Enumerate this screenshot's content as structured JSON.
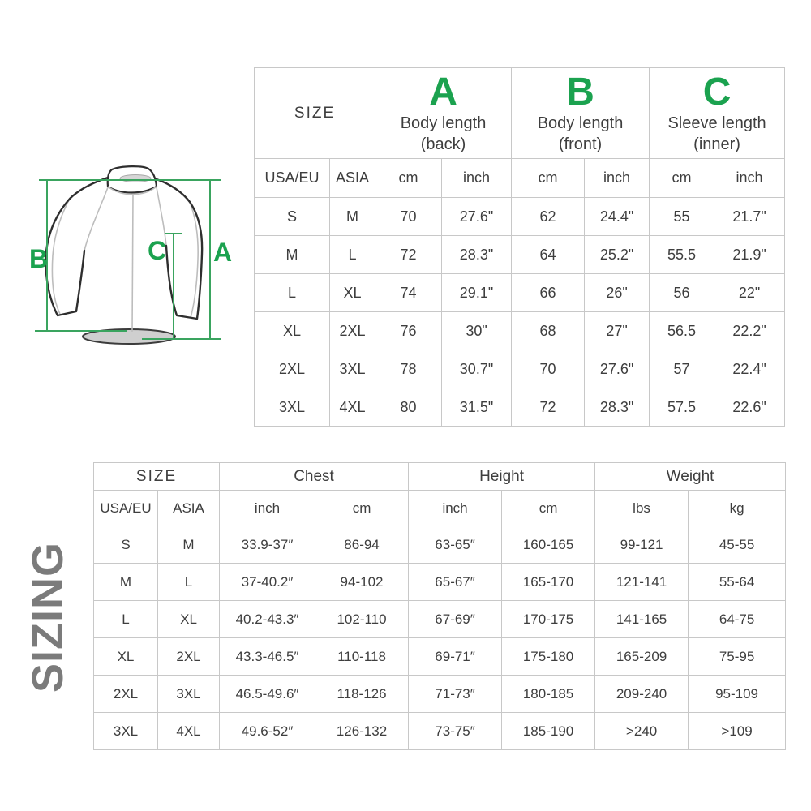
{
  "page": {
    "vertical_title": "SIZING"
  },
  "colors": {
    "accent_green": "#1ba24f",
    "measure_line_green": "#3aa45f",
    "table_border": "#c8c8c8",
    "text": "#3e3e3e",
    "title_gray": "#7b7b7b"
  },
  "diagram": {
    "labels": {
      "a": "A",
      "b": "B",
      "c": "C"
    }
  },
  "chart_data": [
    {
      "type": "table",
      "size_header": "SIZE",
      "measure_groups": [
        {
          "letter": "A",
          "name": "Body length",
          "sub": "(back)"
        },
        {
          "letter": "B",
          "name": "Body length",
          "sub": "(front)"
        },
        {
          "letter": "C",
          "name": "Sleeve length",
          "sub": "(inner)"
        }
      ],
      "subheaders": [
        "USA/EU",
        "ASIA",
        "cm",
        "inch",
        "cm",
        "inch",
        "cm",
        "inch"
      ],
      "rows": [
        [
          "S",
          "M",
          "70",
          "27.6\"",
          "62",
          "24.4\"",
          "55",
          "21.7\""
        ],
        [
          "M",
          "L",
          "72",
          "28.3\"",
          "64",
          "25.2\"",
          "55.5",
          "21.9\""
        ],
        [
          "L",
          "XL",
          "74",
          "29.1\"",
          "66",
          "26\"",
          "56",
          "22\""
        ],
        [
          "XL",
          "2XL",
          "76",
          "30\"",
          "68",
          "27\"",
          "56.5",
          "22.2\""
        ],
        [
          "2XL",
          "3XL",
          "78",
          "30.7\"",
          "70",
          "27.6\"",
          "57",
          "22.4\""
        ],
        [
          "3XL",
          "4XL",
          "80",
          "31.5\"",
          "72",
          "28.3\"",
          "57.5",
          "22.6\""
        ]
      ]
    },
    {
      "type": "table",
      "size_header": "SIZE",
      "measure_groups": [
        {
          "name": "Chest"
        },
        {
          "name": "Height"
        },
        {
          "name": "Weight"
        }
      ],
      "subheaders": [
        "USA/EU",
        "ASIA",
        "inch",
        "cm",
        "inch",
        "cm",
        "lbs",
        "kg"
      ],
      "rows": [
        [
          "S",
          "M",
          "33.9-37″",
          "86-94",
          "63-65″",
          "160-165",
          "99-121",
          "45-55"
        ],
        [
          "M",
          "L",
          "37-40.2″",
          "94-102",
          "65-67″",
          "165-170",
          "121-141",
          "55-64"
        ],
        [
          "L",
          "XL",
          "40.2-43.3″",
          "102-110",
          "67-69″",
          "170-175",
          "141-165",
          "64-75"
        ],
        [
          "XL",
          "2XL",
          "43.3-46.5″",
          "110-118",
          "69-71″",
          "175-180",
          "165-209",
          "75-95"
        ],
        [
          "2XL",
          "3XL",
          "46.5-49.6″",
          "118-126",
          "71-73″",
          "180-185",
          "209-240",
          "95-109"
        ],
        [
          "3XL",
          "4XL",
          "49.6-52″",
          "126-132",
          "73-75″",
          "185-190",
          ">240",
          ">109"
        ]
      ]
    }
  ]
}
